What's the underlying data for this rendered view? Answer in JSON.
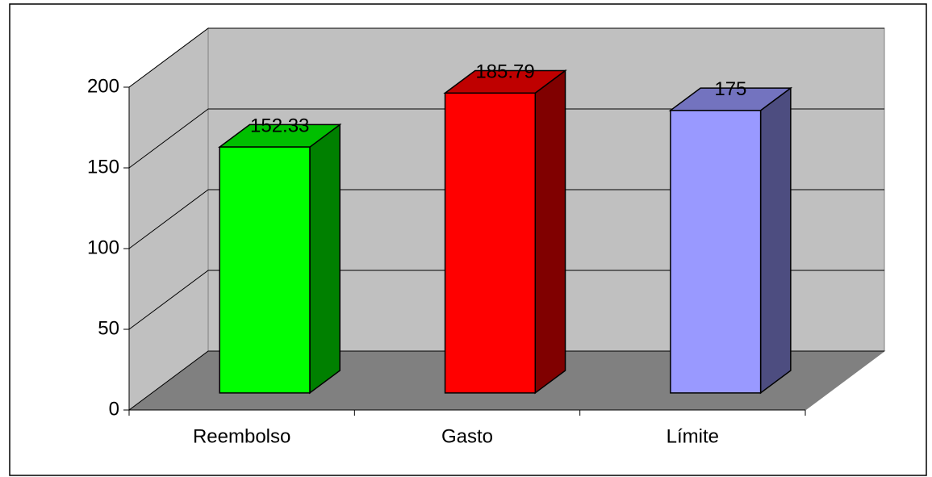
{
  "chart_data": {
    "type": "bar",
    "categories": [
      "Reembolso",
      "Gasto",
      "Límite"
    ],
    "values": [
      152.33,
      185.79,
      175
    ],
    "colors": [
      "#00ff00",
      "#ff0000",
      "#9999ff"
    ],
    "ylim": [
      0,
      200
    ],
    "yticks": [
      0,
      50,
      100,
      150,
      200
    ],
    "grid": true
  }
}
